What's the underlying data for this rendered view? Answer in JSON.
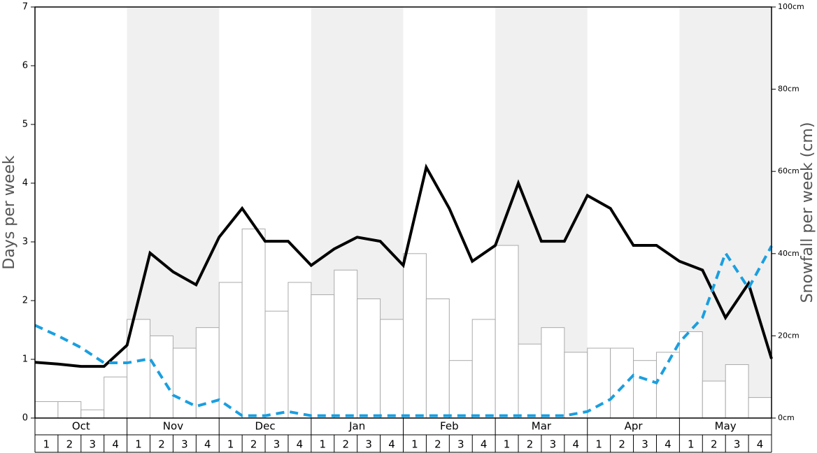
{
  "chart_data": {
    "type": "bar",
    "y_label": "Days per week",
    "y2_label": "Snowfall per week (cm)",
    "months": [
      "Oct",
      "Nov",
      "Dec",
      "Jan",
      "Feb",
      "Mar",
      "Apr",
      "May"
    ],
    "weeks": [
      "1",
      "2",
      "3",
      "4"
    ],
    "shaded_months": [
      1,
      3,
      5,
      7
    ],
    "shade_color": "#f0f0f0",
    "ylim": [
      0,
      7
    ],
    "yticks": [
      0,
      1,
      2,
      3,
      4,
      5,
      6,
      7
    ],
    "y2lim": [
      0,
      100
    ],
    "y2ticks": [
      {
        "value": 0,
        "label": "0cm"
      },
      {
        "value": 20,
        "label": "20cm"
      },
      {
        "value": 40,
        "label": "40cm"
      },
      {
        "value": 60,
        "label": "60cm"
      },
      {
        "value": 80,
        "label": "80cm"
      },
      {
        "value": 100,
        "label": "100cm"
      }
    ],
    "bars": {
      "axis": "y2",
      "color": "#ffffff",
      "edge_color": "#aaaaaa",
      "values": [
        4,
        4,
        2,
        10,
        24,
        20,
        17,
        22,
        33,
        46,
        26,
        33,
        30,
        36,
        29,
        24,
        40,
        29,
        14,
        24,
        42,
        18,
        22,
        16,
        17,
        17,
        14,
        16,
        21,
        9,
        13,
        5
      ]
    },
    "lines": [
      {
        "color": "#000000",
        "dashed": false,
        "values": [
          0.95,
          0.92,
          0.88,
          0.88,
          1.24,
          2.81,
          2.49,
          2.27,
          3.08,
          3.57,
          3.01,
          3.01,
          2.6,
          2.88,
          3.08,
          3.01,
          2.6,
          4.27,
          3.57,
          2.67,
          2.94,
          4.0,
          3.01,
          3.01,
          3.79,
          3.57,
          2.94,
          2.94,
          2.67,
          2.52,
          1.71,
          2.29,
          1.01
        ]
      },
      {
        "color": "#1a9fe0",
        "dashed": true,
        "values": [
          1.58,
          1.4,
          1.2,
          0.94,
          0.94,
          1.01,
          0.39,
          0.2,
          0.31,
          0.04,
          0.04,
          0.11,
          0.04,
          0.04,
          0.04,
          0.04,
          0.04,
          0.04,
          0.04,
          0.04,
          0.04,
          0.04,
          0.04,
          0.04,
          0.11,
          0.32,
          0.73,
          0.6,
          1.29,
          1.71,
          2.81,
          2.21,
          2.93
        ]
      }
    ]
  }
}
